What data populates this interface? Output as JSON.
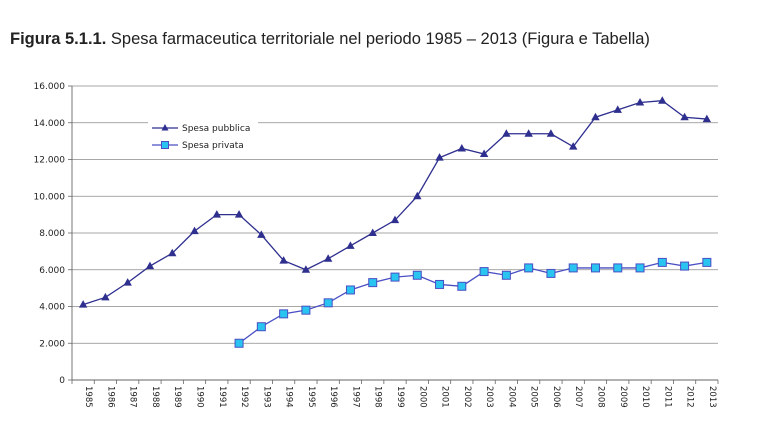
{
  "title": {
    "prefix": "Figura 5.1.1.",
    "text": "Spesa farmaceutica territoriale nel periodo 1985 – 2013 (Figura e Tabella)"
  },
  "chart_data": {
    "type": "line",
    "x": [
      1985,
      1986,
      1987,
      1988,
      1989,
      1990,
      1991,
      1992,
      1993,
      1994,
      1995,
      1996,
      1997,
      1998,
      1999,
      2000,
      2001,
      2002,
      2003,
      2004,
      2005,
      2006,
      2007,
      2008,
      2009,
      2010,
      2011,
      2012,
      2013
    ],
    "ylim": [
      0,
      16000
    ],
    "yticks": [
      "0",
      "2.000",
      "4.000",
      "6.000",
      "8.000",
      "10.000",
      "12.000",
      "14.000",
      "16.000"
    ],
    "grid": true,
    "legend_position": "top-left",
    "series": [
      {
        "name": "Spesa pubblica",
        "marker": "triangle",
        "color": "#2e2f8f",
        "values": [
          4100,
          4500,
          5300,
          6200,
          6900,
          8100,
          9000,
          9000,
          7900,
          6500,
          6000,
          6600,
          7300,
          8000,
          8700,
          10000,
          12100,
          12600,
          12300,
          13400,
          13400,
          13400,
          12700,
          14300,
          14700,
          15100,
          15200,
          14300,
          14200
        ]
      },
      {
        "name": "Spesa privata",
        "marker": "square",
        "color": "#4a4fc4",
        "marker_fill": "#29c4f0",
        "values": [
          null,
          null,
          null,
          null,
          null,
          null,
          null,
          2000,
          2900,
          3600,
          3800,
          4200,
          4900,
          5300,
          5600,
          5700,
          5200,
          5100,
          5900,
          5700,
          6100,
          5800,
          6100,
          6100,
          6100,
          6100,
          6400,
          6200,
          6400
        ]
      }
    ]
  }
}
